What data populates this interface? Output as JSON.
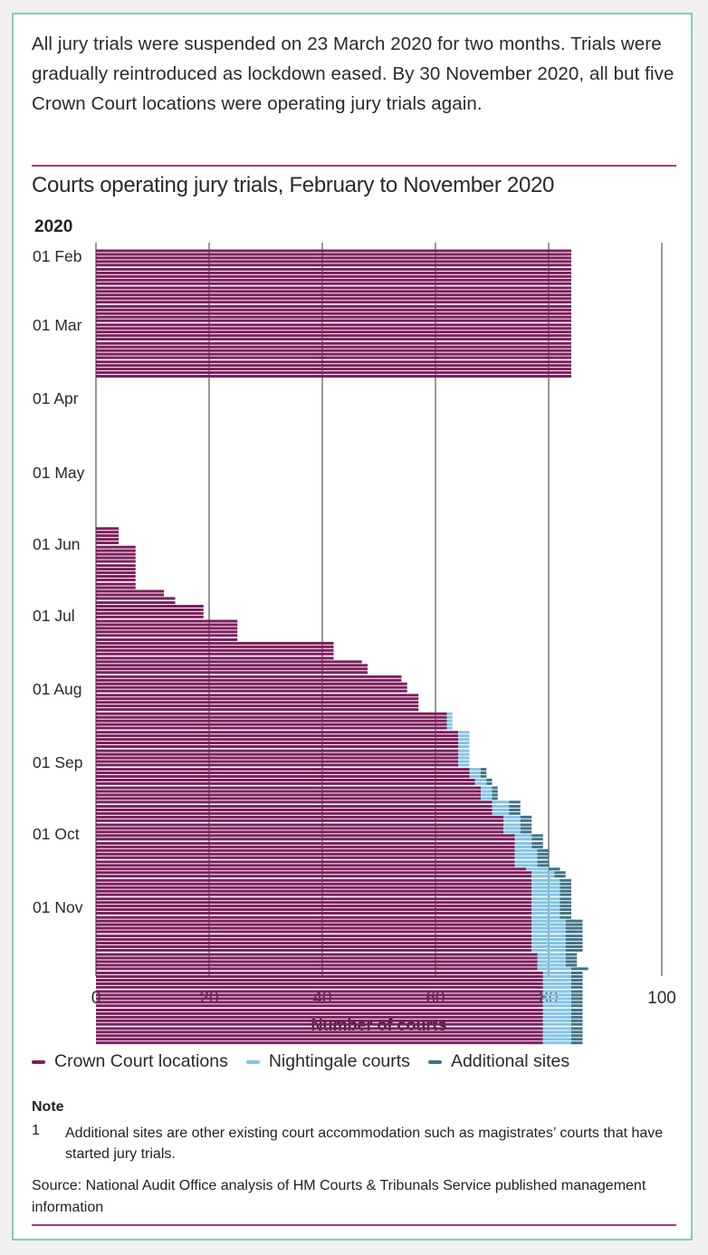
{
  "intro": "All jury trials were suspended on 23 March 2020 for two months. Trials were gradually reintroduced as lockdown eased. By 30 November 2020, all but five Crown Court locations were operating jury trials again.",
  "chart_data": {
    "type": "bar",
    "orientation": "horizontal-stacked",
    "title": "Courts operating jury trials, February to November 2020",
    "ylabel": "2020",
    "xlabel": "Number of courts",
    "xlim": [
      0,
      100
    ],
    "xticks": [
      0,
      20,
      40,
      60,
      80,
      100
    ],
    "grid": true,
    "legend_position": "bottom",
    "y_tick_labels": [
      "01 Feb",
      "01 Mar",
      "01 Apr",
      "01 May",
      "01 Jun",
      "01 Jul",
      "01 Aug",
      "01 Sep",
      "01 Oct",
      "01 Nov"
    ],
    "series_names": [
      "Crown Court locations",
      "Nightingale courts",
      "Additional sites"
    ],
    "colors": {
      "crown": "#7d1f5c",
      "nightingale": "#82c4e6",
      "additional": "#3e7387"
    },
    "note_rows": "Each row is one weekday; weeks listed from 03 Feb to 30 Nov 2020",
    "weeks": [
      {
        "week_of": "03 Feb",
        "days": [
          [
            84,
            0,
            0
          ],
          [
            84,
            0,
            0
          ],
          [
            84,
            0,
            0
          ],
          [
            84,
            0,
            0
          ],
          [
            84,
            0,
            0
          ]
        ]
      },
      {
        "week_of": "10 Feb",
        "days": [
          [
            84,
            0,
            0
          ],
          [
            84,
            0,
            0
          ],
          [
            84,
            0,
            0
          ],
          [
            84,
            0,
            0
          ],
          [
            84,
            0,
            0
          ]
        ]
      },
      {
        "week_of": "17 Feb",
        "days": [
          [
            84,
            0,
            0
          ],
          [
            84,
            0,
            0
          ],
          [
            84,
            0,
            0
          ],
          [
            84,
            0,
            0
          ],
          [
            84,
            0,
            0
          ]
        ]
      },
      {
        "week_of": "24 Feb",
        "days": [
          [
            84,
            0,
            0
          ],
          [
            84,
            0,
            0
          ],
          [
            84,
            0,
            0
          ],
          [
            84,
            0,
            0
          ],
          [
            84,
            0,
            0
          ]
        ]
      },
      {
        "week_of": "02 Mar",
        "days": [
          [
            84,
            0,
            0
          ],
          [
            84,
            0,
            0
          ],
          [
            84,
            0,
            0
          ],
          [
            84,
            0,
            0
          ],
          [
            84,
            0,
            0
          ]
        ]
      },
      {
        "week_of": "09 Mar",
        "days": [
          [
            84,
            0,
            0
          ],
          [
            84,
            0,
            0
          ],
          [
            84,
            0,
            0
          ],
          [
            84,
            0,
            0
          ],
          [
            84,
            0,
            0
          ]
        ]
      },
      {
        "week_of": "16 Mar",
        "days": [
          [
            84,
            0,
            0
          ],
          [
            84,
            0,
            0
          ],
          [
            84,
            0,
            0
          ],
          [
            84,
            0,
            0
          ],
          [
            84,
            0,
            0
          ]
        ]
      },
      {
        "week_of": "23 Mar",
        "days": [
          [
            0,
            0,
            0
          ],
          [
            0,
            0,
            0
          ],
          [
            0,
            0,
            0
          ],
          [
            0,
            0,
            0
          ],
          [
            0,
            0,
            0
          ]
        ]
      },
      {
        "week_of": "30 Mar",
        "days": [
          [
            0,
            0,
            0
          ],
          [
            0,
            0,
            0
          ],
          [
            0,
            0,
            0
          ],
          [
            0,
            0,
            0
          ],
          [
            0,
            0,
            0
          ]
        ]
      },
      {
        "week_of": "06 Apr",
        "days": [
          [
            0,
            0,
            0
          ],
          [
            0,
            0,
            0
          ],
          [
            0,
            0,
            0
          ],
          [
            0,
            0,
            0
          ],
          [
            0,
            0,
            0
          ]
        ]
      },
      {
        "week_of": "13 Apr",
        "days": [
          [
            0,
            0,
            0
          ],
          [
            0,
            0,
            0
          ],
          [
            0,
            0,
            0
          ],
          [
            0,
            0,
            0
          ],
          [
            0,
            0,
            0
          ]
        ]
      },
      {
        "week_of": "20 Apr",
        "days": [
          [
            0,
            0,
            0
          ],
          [
            0,
            0,
            0
          ],
          [
            0,
            0,
            0
          ],
          [
            0,
            0,
            0
          ],
          [
            0,
            0,
            0
          ]
        ]
      },
      {
        "week_of": "27 Apr",
        "days": [
          [
            0,
            0,
            0
          ],
          [
            0,
            0,
            0
          ],
          [
            0,
            0,
            0
          ],
          [
            0,
            0,
            0
          ],
          [
            0,
            0,
            0
          ]
        ]
      },
      {
        "week_of": "04 May",
        "days": [
          [
            0,
            0,
            0
          ],
          [
            0,
            0,
            0
          ],
          [
            0,
            0,
            0
          ],
          [
            0,
            0,
            0
          ],
          [
            0,
            0,
            0
          ]
        ]
      },
      {
        "week_of": "11 May",
        "days": [
          [
            0,
            0,
            0
          ],
          [
            0,
            0,
            0
          ],
          [
            0,
            0,
            0
          ],
          [
            0,
            0,
            0
          ],
          [
            0,
            0,
            0
          ]
        ]
      },
      {
        "week_of": "18 May",
        "days": [
          [
            4,
            0,
            0
          ],
          [
            4,
            0,
            0
          ],
          [
            4,
            0,
            0
          ],
          [
            4,
            0,
            0
          ],
          [
            4,
            0,
            0
          ]
        ]
      },
      {
        "week_of": "25 May",
        "days": [
          [
            7,
            0,
            0
          ],
          [
            7,
            0,
            0
          ],
          [
            7,
            0,
            0
          ],
          [
            7,
            0,
            0
          ],
          [
            7,
            0,
            0
          ]
        ]
      },
      {
        "week_of": "01 Jun",
        "days": [
          [
            7,
            0,
            0
          ],
          [
            7,
            0,
            0
          ],
          [
            7,
            0,
            0
          ],
          [
            7,
            0,
            0
          ],
          [
            7,
            0,
            0
          ]
        ]
      },
      {
        "week_of": "08 Jun",
        "days": [
          [
            7,
            0,
            0
          ],
          [
            7,
            0,
            0
          ],
          [
            12,
            0,
            0
          ],
          [
            12,
            0,
            0
          ],
          [
            14,
            0,
            0
          ]
        ]
      },
      {
        "week_of": "15 Jun",
        "days": [
          [
            14,
            0,
            0
          ],
          [
            19,
            0,
            0
          ],
          [
            19,
            0,
            0
          ],
          [
            19,
            0,
            0
          ],
          [
            19,
            0,
            0
          ]
        ]
      },
      {
        "week_of": "22 Jun",
        "days": [
          [
            25,
            0,
            0
          ],
          [
            25,
            0,
            0
          ],
          [
            25,
            0,
            0
          ],
          [
            25,
            0,
            0
          ],
          [
            25,
            0,
            0
          ]
        ]
      },
      {
        "week_of": "29 Jun",
        "days": [
          [
            25,
            0,
            0
          ],
          [
            42,
            0,
            0
          ],
          [
            42,
            0,
            0
          ],
          [
            42,
            0,
            0
          ],
          [
            42,
            0,
            0
          ]
        ]
      },
      {
        "week_of": "06 Jul",
        "days": [
          [
            42,
            0,
            0
          ],
          [
            47,
            0,
            0
          ],
          [
            48,
            0,
            0
          ],
          [
            48,
            0,
            0
          ],
          [
            48,
            0,
            0
          ]
        ]
      },
      {
        "week_of": "13 Jul",
        "days": [
          [
            54,
            0,
            0
          ],
          [
            54,
            0,
            0
          ],
          [
            55,
            0,
            0
          ],
          [
            55,
            0,
            0
          ],
          [
            55,
            0,
            0
          ]
        ]
      },
      {
        "week_of": "20 Jul",
        "days": [
          [
            57,
            0,
            0
          ],
          [
            57,
            0,
            0
          ],
          [
            57,
            0,
            0
          ],
          [
            57,
            0,
            0
          ],
          [
            57,
            0,
            0
          ]
        ]
      },
      {
        "week_of": "27 Jul",
        "days": [
          [
            62,
            1,
            0
          ],
          [
            62,
            1,
            0
          ],
          [
            62,
            1,
            0
          ],
          [
            62,
            1,
            0
          ],
          [
            62,
            1,
            0
          ]
        ]
      },
      {
        "week_of": "03 Aug",
        "days": [
          [
            64,
            2,
            0
          ],
          [
            64,
            2,
            0
          ],
          [
            64,
            2,
            0
          ],
          [
            64,
            2,
            0
          ],
          [
            64,
            2,
            0
          ]
        ]
      },
      {
        "week_of": "10 Aug",
        "days": [
          [
            64,
            2,
            0
          ],
          [
            64,
            2,
            0
          ],
          [
            64,
            2,
            0
          ],
          [
            64,
            2,
            0
          ],
          [
            64,
            2,
            0
          ]
        ]
      },
      {
        "week_of": "17 Aug",
        "days": [
          [
            66,
            2,
            1
          ],
          [
            66,
            2,
            1
          ],
          [
            66,
            2,
            1
          ],
          [
            67,
            2,
            1
          ],
          [
            67,
            2,
            1
          ]
        ]
      },
      {
        "week_of": "24 Aug",
        "days": [
          [
            68,
            2,
            1
          ],
          [
            68,
            2,
            1
          ],
          [
            68,
            2,
            1
          ],
          [
            68,
            2,
            1
          ],
          [
            70,
            3,
            2
          ]
        ]
      },
      {
        "week_of": "31 Aug",
        "days": [
          [
            70,
            3,
            2
          ],
          [
            70,
            3,
            2
          ],
          [
            70,
            3,
            2
          ],
          [
            72,
            3,
            2
          ],
          [
            72,
            3,
            2
          ]
        ]
      },
      {
        "week_of": "07 Sep",
        "days": [
          [
            72,
            3,
            2
          ],
          [
            72,
            3,
            2
          ],
          [
            72,
            3,
            2
          ],
          [
            74,
            3,
            2
          ],
          [
            74,
            3,
            2
          ]
        ]
      },
      {
        "week_of": "14 Sep",
        "days": [
          [
            74,
            3,
            2
          ],
          [
            74,
            3,
            2
          ],
          [
            74,
            4,
            2
          ],
          [
            74,
            4,
            2
          ],
          [
            74,
            4,
            2
          ]
        ]
      },
      {
        "week_of": "21 Sep",
        "days": [
          [
            74,
            4,
            2
          ],
          [
            74,
            4,
            2
          ],
          [
            76,
            4,
            2
          ],
          [
            77,
            4,
            2
          ],
          [
            77,
            4,
            2
          ]
        ]
      },
      {
        "week_of": "28 Sep",
        "days": [
          [
            77,
            5,
            2
          ],
          [
            77,
            5,
            2
          ],
          [
            77,
            5,
            2
          ],
          [
            77,
            5,
            2
          ],
          [
            77,
            5,
            2
          ]
        ]
      },
      {
        "week_of": "05 Oct",
        "days": [
          [
            77,
            5,
            2
          ],
          [
            77,
            5,
            2
          ],
          [
            77,
            5,
            2
          ],
          [
            77,
            5,
            2
          ],
          [
            77,
            5,
            2
          ]
        ]
      },
      {
        "week_of": "12 Oct",
        "days": [
          [
            77,
            5,
            2
          ],
          [
            77,
            6,
            3
          ],
          [
            77,
            6,
            3
          ],
          [
            77,
            6,
            3
          ],
          [
            77,
            6,
            3
          ]
        ]
      },
      {
        "week_of": "19 Oct",
        "days": [
          [
            77,
            6,
            3
          ],
          [
            77,
            6,
            3
          ],
          [
            77,
            6,
            3
          ],
          [
            77,
            6,
            3
          ],
          [
            77,
            6,
            3
          ]
        ]
      },
      {
        "week_of": "26 Oct",
        "days": [
          [
            78,
            5,
            2
          ],
          [
            78,
            5,
            2
          ],
          [
            78,
            5,
            2
          ],
          [
            78,
            5,
            2
          ],
          [
            78,
            6,
            3
          ]
        ]
      },
      {
        "week_of": "02 Nov",
        "days": [
          [
            79,
            5,
            2
          ],
          [
            79,
            5,
            2
          ],
          [
            79,
            5,
            2
          ],
          [
            79,
            5,
            2
          ],
          [
            79,
            5,
            2
          ]
        ]
      },
      {
        "week_of": "09 Nov",
        "days": [
          [
            79,
            5,
            2
          ],
          [
            79,
            5,
            2
          ],
          [
            79,
            5,
            2
          ],
          [
            79,
            5,
            2
          ],
          [
            79,
            5,
            2
          ]
        ]
      },
      {
        "week_of": "16 Nov",
        "days": [
          [
            79,
            5,
            2
          ],
          [
            79,
            5,
            2
          ],
          [
            79,
            5,
            2
          ],
          [
            79,
            5,
            2
          ],
          [
            79,
            5,
            2
          ]
        ]
      },
      {
        "week_of": "23 Nov",
        "days": [
          [
            79,
            5,
            2
          ],
          [
            79,
            5,
            2
          ],
          [
            79,
            5,
            2
          ],
          [
            79,
            5,
            2
          ],
          [
            79,
            5,
            2
          ]
        ]
      }
    ]
  },
  "legend": {
    "items": [
      {
        "label": "Crown Court locations",
        "color": "#7d1f5c"
      },
      {
        "label": "Nightingale courts",
        "color": "#82c4e6"
      },
      {
        "label": "Additional sites",
        "color": "#3e7387"
      }
    ]
  },
  "note": {
    "heading": "Note",
    "number": "1",
    "text": "Additional sites are other existing court accommodation such as magistrates’ courts that have started jury trials."
  },
  "source": "Source: National Audit Office analysis of HM Courts & Tribunals Service published management information"
}
